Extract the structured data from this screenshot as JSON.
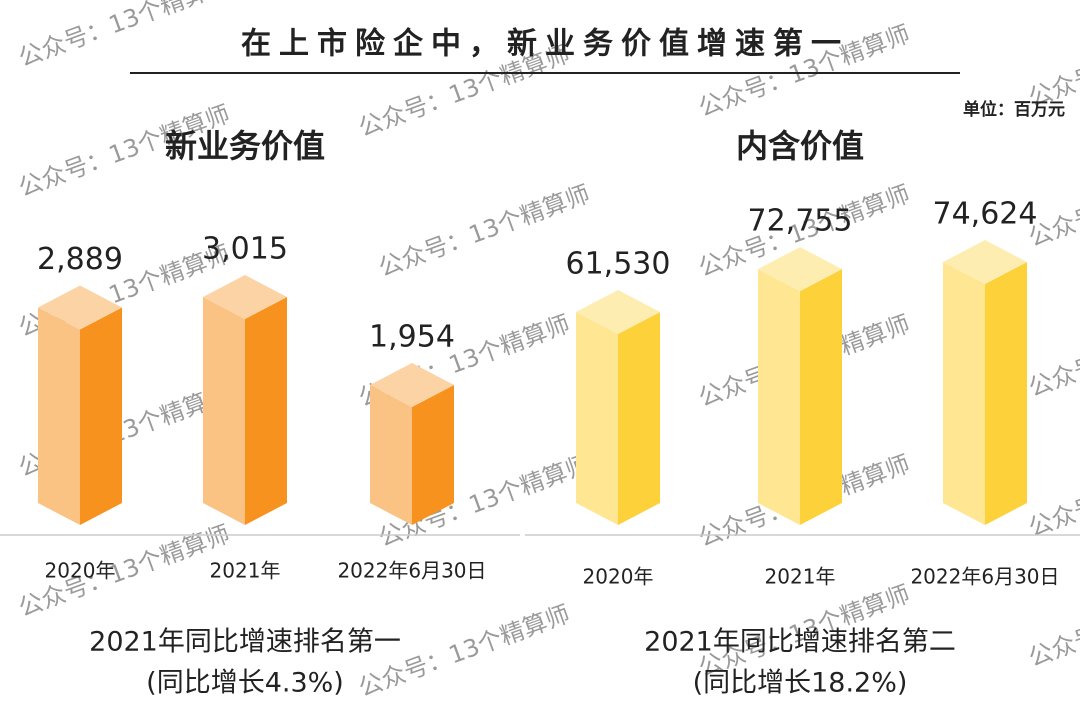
{
  "title": "在上市险企中，新业务价值增速第一",
  "unit": "单位：百万元",
  "watermark": "公众号：13个精算师",
  "chart_data": [
    {
      "type": "bar",
      "title": "新业务价值",
      "categories": [
        "2020年",
        "2021年",
        "2022年6月30日"
      ],
      "values": [
        2889,
        3015,
        1954
      ],
      "value_labels": [
        "2,889",
        "3,015",
        "1,954"
      ],
      "color": "#f7921e",
      "note": [
        "2021年同比增速排名第一",
        "(同比增长4.3%)"
      ]
    },
    {
      "type": "bar",
      "title": "内含价值",
      "categories": [
        "2020年",
        "2021年",
        "2022年6月30日"
      ],
      "values": [
        61530,
        72755,
        74624
      ],
      "value_labels": [
        "61,530",
        "72,755",
        "74,624"
      ],
      "color": "#fdd13a",
      "note": [
        "2021年同比增速排名第二",
        "(同比增长18.2%)"
      ]
    }
  ]
}
